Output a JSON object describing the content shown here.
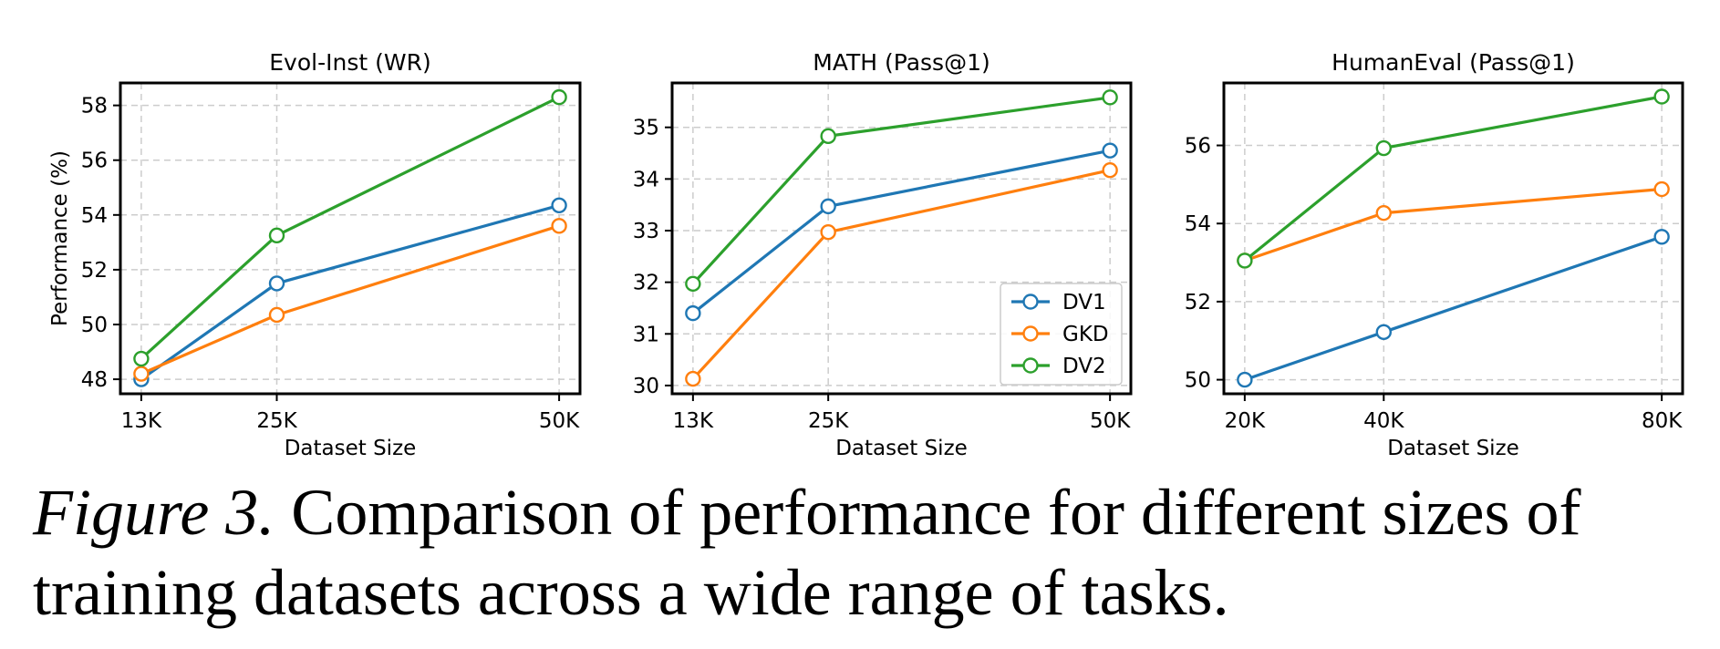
{
  "chart_data": [
    {
      "type": "line",
      "title": "Evol-Inst (WR)",
      "xlabel": "Dataset Size",
      "ylabel": "Performance (%)",
      "x": [
        13,
        25,
        50
      ],
      "x_tick_labels": [
        "13K",
        "25K",
        "50K"
      ],
      "y_ticks": [
        48,
        50,
        52,
        54,
        56,
        58
      ],
      "xlim": [
        11.15,
        51.85
      ],
      "ylim": [
        47.47,
        58.82
      ],
      "grid": true,
      "legend": null,
      "series": [
        {
          "name": "DV1",
          "color": "#1f77b4",
          "values": [
            48.0,
            51.5,
            54.35
          ]
        },
        {
          "name": "GKD",
          "color": "#ff7f0e",
          "values": [
            48.2,
            50.35,
            53.6
          ]
        },
        {
          "name": "DV2",
          "color": "#2ca02c",
          "values": [
            48.75,
            53.25,
            58.3
          ]
        }
      ]
    },
    {
      "type": "line",
      "title": "MATH (Pass@1)",
      "xlabel": "Dataset Size",
      "ylabel": "",
      "x": [
        13,
        25,
        50
      ],
      "x_tick_labels": [
        "13K",
        "25K",
        "50K"
      ],
      "y_ticks": [
        30,
        31,
        32,
        33,
        34,
        35
      ],
      "xlim": [
        11.15,
        51.85
      ],
      "ylim": [
        29.84,
        35.86
      ],
      "grid": true,
      "legend": "lower-right",
      "series": [
        {
          "name": "DV1",
          "color": "#1f77b4",
          "values": [
            31.4,
            33.47,
            34.55
          ]
        },
        {
          "name": "GKD",
          "color": "#ff7f0e",
          "values": [
            30.13,
            32.97,
            34.17
          ]
        },
        {
          "name": "DV2",
          "color": "#2ca02c",
          "values": [
            31.97,
            34.83,
            35.58
          ]
        }
      ]
    },
    {
      "type": "line",
      "title": "HumanEval (Pass@1)",
      "xlabel": "Dataset Size",
      "ylabel": "",
      "x": [
        20,
        40,
        80
      ],
      "x_tick_labels": [
        "20K",
        "40K",
        "80K"
      ],
      "y_ticks": [
        50,
        52,
        54,
        56
      ],
      "xlim": [
        17.0,
        83.0
      ],
      "ylim": [
        49.64,
        57.6
      ],
      "grid": true,
      "legend": null,
      "series": [
        {
          "name": "DV1",
          "color": "#1f77b4",
          "values": [
            50.0,
            51.22,
            53.66
          ]
        },
        {
          "name": "GKD",
          "color": "#ff7f0e",
          "values": [
            53.05,
            54.27,
            54.88
          ]
        },
        {
          "name": "DV2",
          "color": "#2ca02c",
          "values": [
            53.05,
            55.93,
            57.25
          ]
        }
      ]
    }
  ],
  "caption": {
    "label": "Figure 3.",
    "text": " Comparison of performance for different sizes of training datasets across a wide range of tasks."
  }
}
